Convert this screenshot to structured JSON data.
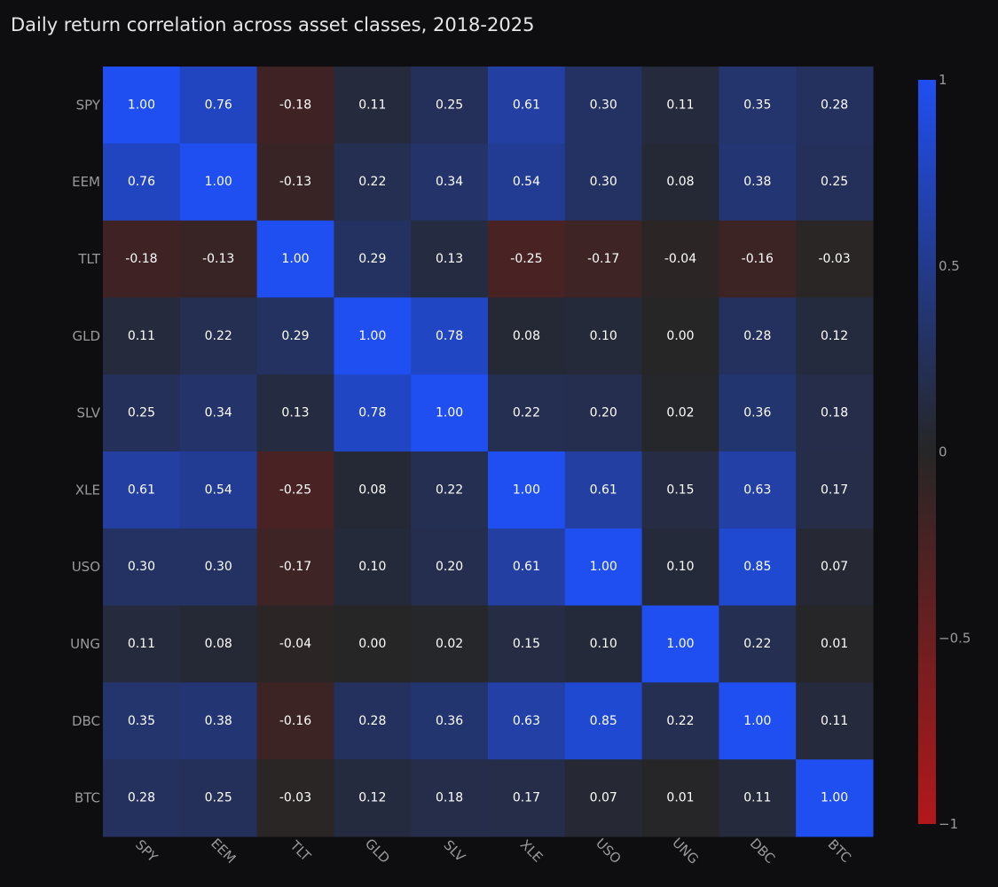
{
  "chart_data": {
    "type": "heatmap",
    "title": "Daily return correlation across asset classes, 2018-2025",
    "x_categories": [
      "SPY",
      "EEM",
      "TLT",
      "GLD",
      "SLV",
      "XLE",
      "USO",
      "UNG",
      "DBC",
      "BTC"
    ],
    "y_categories": [
      "SPY",
      "EEM",
      "TLT",
      "GLD",
      "SLV",
      "XLE",
      "USO",
      "UNG",
      "DBC",
      "BTC"
    ],
    "values": [
      [
        1.0,
        0.76,
        -0.18,
        0.11,
        0.25,
        0.61,
        0.3,
        0.11,
        0.35,
        0.28
      ],
      [
        0.76,
        1.0,
        -0.13,
        0.22,
        0.34,
        0.54,
        0.3,
        0.08,
        0.38,
        0.25
      ],
      [
        -0.18,
        -0.13,
        1.0,
        0.29,
        0.13,
        -0.25,
        -0.17,
        -0.04,
        -0.16,
        -0.03
      ],
      [
        0.11,
        0.22,
        0.29,
        1.0,
        0.78,
        0.08,
        0.1,
        0.0,
        0.28,
        0.12
      ],
      [
        0.25,
        0.34,
        0.13,
        0.78,
        1.0,
        0.22,
        0.2,
        0.02,
        0.36,
        0.18
      ],
      [
        0.61,
        0.54,
        -0.25,
        0.08,
        0.22,
        1.0,
        0.61,
        0.15,
        0.63,
        0.17
      ],
      [
        0.3,
        0.3,
        -0.17,
        0.1,
        0.2,
        0.61,
        1.0,
        0.1,
        0.85,
        0.07
      ],
      [
        0.11,
        0.08,
        -0.04,
        0.0,
        0.02,
        0.15,
        0.1,
        1.0,
        0.22,
        0.01
      ],
      [
        0.35,
        0.38,
        -0.16,
        0.28,
        0.36,
        0.63,
        0.85,
        0.22,
        1.0,
        0.11
      ],
      [
        0.28,
        0.25,
        -0.03,
        0.12,
        0.18,
        0.17,
        0.07,
        0.01,
        0.11,
        1.0
      ]
    ],
    "value_format": "0.00",
    "zrange": [
      -1,
      1
    ],
    "colorscale": {
      "min_color": "#b2181b",
      "mid_color": "#262626",
      "max_color": "#1f4ff0"
    },
    "colorbar": {
      "tick_values": [
        1,
        0.5,
        0,
        -0.5,
        -1
      ],
      "tick_labels": [
        "1",
        "0.5",
        "0",
        "−0.5",
        "−1"
      ]
    },
    "background_color": "#0e0e10"
  }
}
